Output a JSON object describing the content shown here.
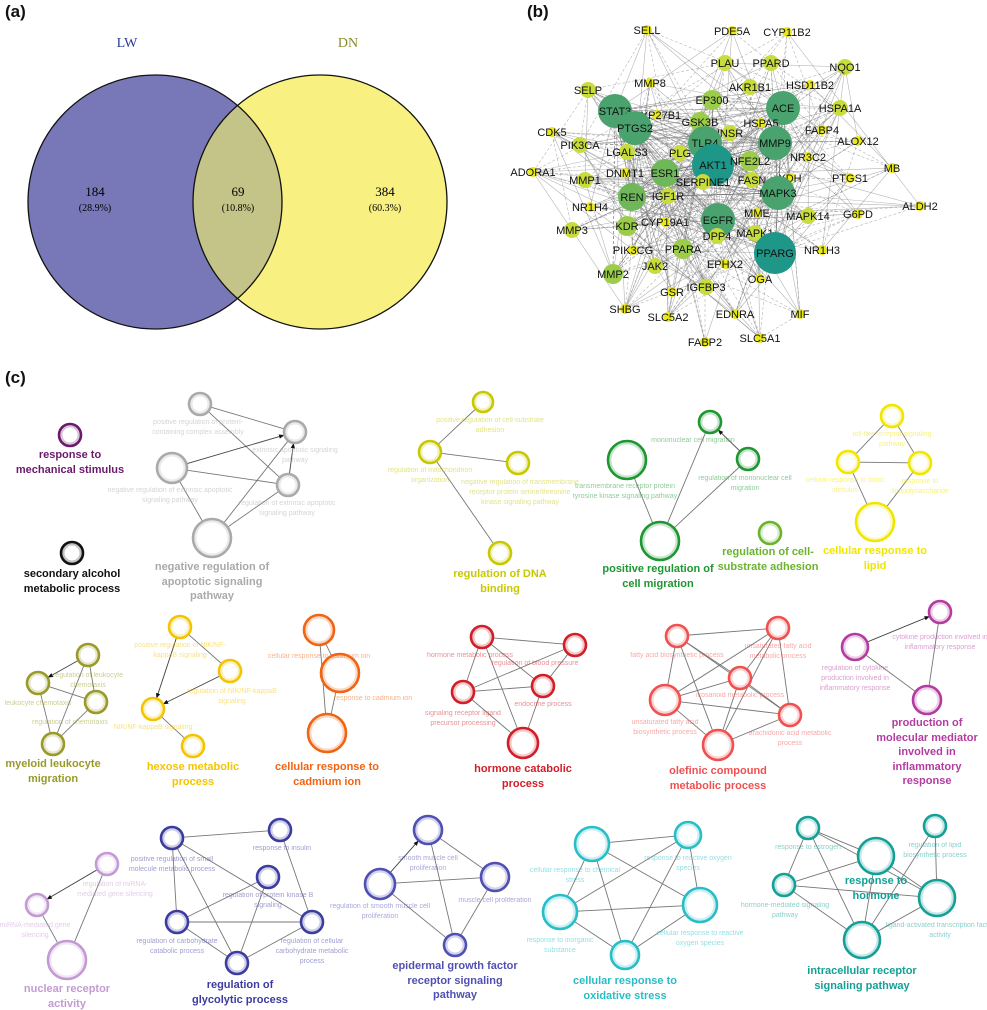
{
  "panel_a": {
    "label": "(a)",
    "sets": [
      {
        "name": "LW",
        "count": "184",
        "percent": "(28.9%)",
        "color": "#7878b8",
        "label_color": "#2a3a9a"
      },
      {
        "name": "DN",
        "count": "384",
        "percent": "(60.3%)",
        "color": "#f8f080",
        "label_color": "#8a8a2a"
      }
    ],
    "intersection": {
      "count": "69",
      "percent": "(10.8%)",
      "color": "#c4c488"
    }
  },
  "panel_b": {
    "label": "(b)",
    "level_colors": [
      "#e8e81a",
      "#c8dc3c",
      "#9ccd4a",
      "#6fb85a",
      "#4aa36e",
      "#1e9688"
    ],
    "nodes": [
      {
        "name": "SELL",
        "level": 1
      },
      {
        "name": "PDE5A",
        "level": 1
      },
      {
        "name": "CYP11B2",
        "level": 1
      },
      {
        "name": "PLAU",
        "level": 2
      },
      {
        "name": "PPARD",
        "level": 2
      },
      {
        "name": "NQO1",
        "level": 2
      },
      {
        "name": "MMP8",
        "level": 1
      },
      {
        "name": "SELP",
        "level": 2
      },
      {
        "name": "AKR1B1",
        "level": 2
      },
      {
        "name": "HSD11B2",
        "level": 1
      },
      {
        "name": "STAT3",
        "level": 5
      },
      {
        "name": "EP300",
        "level": 3
      },
      {
        "name": "ACE",
        "level": 5
      },
      {
        "name": "HSPA1A",
        "level": 2
      },
      {
        "name": "CYP27B1",
        "level": 1
      },
      {
        "name": "CDK5",
        "level": 1
      },
      {
        "name": "PTGS2",
        "level": 5
      },
      {
        "name": "GSK3B",
        "level": 3
      },
      {
        "name": "HSPA5",
        "level": 1
      },
      {
        "name": "INSR",
        "level": 2
      },
      {
        "name": "FABP4",
        "level": 1
      },
      {
        "name": "PIK3CA",
        "level": 2
      },
      {
        "name": "LGALS3",
        "level": 2
      },
      {
        "name": "PLG",
        "level": 2
      },
      {
        "name": "TLR4",
        "level": 5
      },
      {
        "name": "MMP9",
        "level": 5
      },
      {
        "name": "ALOX12",
        "level": 1
      },
      {
        "name": "AKT1",
        "level": 6
      },
      {
        "name": "NFE2L2",
        "level": 3
      },
      {
        "name": "NR3C2",
        "level": 1
      },
      {
        "name": "MB",
        "level": 1
      },
      {
        "name": "ADORA1",
        "level": 1
      },
      {
        "name": "MMP1",
        "level": 2
      },
      {
        "name": "DNMT1",
        "level": 1
      },
      {
        "name": "ESR1",
        "level": 4
      },
      {
        "name": "SERPINE1",
        "level": 2
      },
      {
        "name": "FASN",
        "level": 2
      },
      {
        "name": "XDH",
        "level": 1
      },
      {
        "name": "PTGS1",
        "level": 1
      },
      {
        "name": "REN",
        "level": 4
      },
      {
        "name": "IGF1R",
        "level": 2
      },
      {
        "name": "MAPK3",
        "level": 5
      },
      {
        "name": "NR1H4",
        "level": 1
      },
      {
        "name": "ALDH2",
        "level": 1
      },
      {
        "name": "MME",
        "level": 1
      },
      {
        "name": "MAPK14",
        "level": 2
      },
      {
        "name": "G6PD",
        "level": 1
      },
      {
        "name": "MMP3",
        "level": 2
      },
      {
        "name": "KDR",
        "level": 3
      },
      {
        "name": "CYP19A1",
        "level": 1
      },
      {
        "name": "EGFR",
        "level": 5
      },
      {
        "name": "DPP4",
        "level": 2
      },
      {
        "name": "MAPK1",
        "level": 2
      },
      {
        "name": "PPARG",
        "level": 6
      },
      {
        "name": "NR1H3",
        "level": 1
      },
      {
        "name": "PIK3CG",
        "level": 1
      },
      {
        "name": "PPARA",
        "level": 3
      },
      {
        "name": "MMP2",
        "level": 3
      },
      {
        "name": "JAK2",
        "level": 2
      },
      {
        "name": "EPHX2",
        "level": 1
      },
      {
        "name": "OGA",
        "level": 1
      },
      {
        "name": "GSR",
        "level": 1
      },
      {
        "name": "IGFBP3",
        "level": 2
      },
      {
        "name": "SHBG",
        "level": 1
      },
      {
        "name": "SLC5A2",
        "level": 1
      },
      {
        "name": "EDNRA",
        "level": 1
      },
      {
        "name": "MIF",
        "level": 1
      },
      {
        "name": "FABP2",
        "level": 1
      },
      {
        "name": "SLC5A1",
        "level": 1
      }
    ]
  },
  "panel_c": {
    "label": "(c)",
    "clusters": [
      {
        "title": "response to mechanical stimulus",
        "color": "#6b1a6b",
        "terms": []
      },
      {
        "title": "secondary alcohol metabolic process",
        "color": "#111111",
        "terms": []
      },
      {
        "title": "negative regulation of apoptotic signaling pathway",
        "color": "#aaaaaa",
        "terms": [
          "positive regulation of protein-containing complex assembly",
          "negative regulation of extrinsic apoptotic signaling pathway",
          "extrinsic apoptotic signaling pathway",
          "regulation of extrinsic apoptotic signaling pathway"
        ]
      },
      {
        "title": "regulation of DNA binding",
        "color": "#c8c800",
        "terms": [
          "positive regulation of cell-substrate adhesion",
          "regulation of mitochondrion organization",
          "negative regulation of transmembrane receptor protein serine/threonine kinase signaling pathway"
        ]
      },
      {
        "title": "positive regulation of cell migration",
        "color": "#1e9632",
        "terms": [
          "mononuclear cell migration",
          "regulation of mononuclear cell migration",
          "transmembrane receptor protein tyrosine kinase signaling pathway"
        ]
      },
      {
        "title": "regulation of cell-substrate adhesion",
        "color": "#6ab42d",
        "terms": []
      },
      {
        "title": "cellular response to lipid",
        "color": "#f0e600",
        "terms": [
          "toll-like receptor signaling pathway",
          "cellular response to biotic stimulus",
          "response to lipopolysaccharide"
        ]
      },
      {
        "title": "myeloid leukocyte migration",
        "color": "#999a2a",
        "terms": [
          "regulation of leukocyte chemotaxis",
          "leukocyte chemotaxis",
          "regulation of chemotaxis"
        ]
      },
      {
        "title": "hexose metabolic process",
        "color": "#f5c400",
        "terms": [
          "positive regulation of NIK/NF-kappaB signaling",
          "regulation of NIK/NF-kappaB signaling",
          "NIK/NF-kappaB signaling"
        ]
      },
      {
        "title": "cellular response to cadmium ion",
        "color": "#f06414",
        "terms": [
          "cellular response to cadmium ion",
          "response to cadmium ion"
        ]
      },
      {
        "title": "hormone catabolic process",
        "color": "#d21e28",
        "terms": [
          "hormone metabolic process",
          "regulation of blood pressure",
          "endocrine process",
          "signaling receptor ligand precursor processing"
        ]
      },
      {
        "title": "olefinic compound metabolic process",
        "color": "#f05050",
        "terms": [
          "fatty acid biosynthetic process",
          "unsaturated fatty acid metabolic process",
          "icosanoid metabolic process",
          "unsaturated fatty acid biosynthetic process",
          "arachidonic acid metabolic process"
        ]
      },
      {
        "title": "production of molecular mediator involved in inflammatory response",
        "color": "#b43ca0",
        "terms": [
          "cytokine production involved in inflammatory response",
          "regulation of cytokine production involved in inflammatory response"
        ]
      },
      {
        "title": "nuclear receptor activity",
        "color": "#c39bd2",
        "terms": [
          "regulation of miRNA-mediated gene silencing",
          "miRNA-mediated gene silencing"
        ]
      },
      {
        "title": "regulation of glycolytic process",
        "color": "#3c3ca0",
        "terms": [
          "positive regulation of small molecule metabolic process",
          "response to insulin",
          "regulation of protein kinase B signaling",
          "regulation of carbohydrate catabolic process",
          "regulation of cellular carbohydrate metabolic process"
        ]
      },
      {
        "title": "epidermal growth factor receptor signaling pathway",
        "color": "#5050b4",
        "terms": [
          "smooth muscle cell proliferation",
          "regulation of smooth muscle cell proliferation",
          "muscle cell proliferation"
        ]
      },
      {
        "title": "cellular response to oxidative stress",
        "color": "#28bec8",
        "terms": [
          "cellular response to chemical stress",
          "response to reactive oxygen species",
          "response to inorganic substance",
          "cellular response to reactive oxygen species"
        ]
      },
      {
        "title": "intracellular receptor signaling pathway",
        "color": "#14a096",
        "terms": [
          "response to estrogen",
          "response to hormone",
          "regulation of lipid biosynthetic process",
          "hormone-mediated signaling pathway",
          "ligand-activated transcription factor activity"
        ]
      }
    ]
  }
}
